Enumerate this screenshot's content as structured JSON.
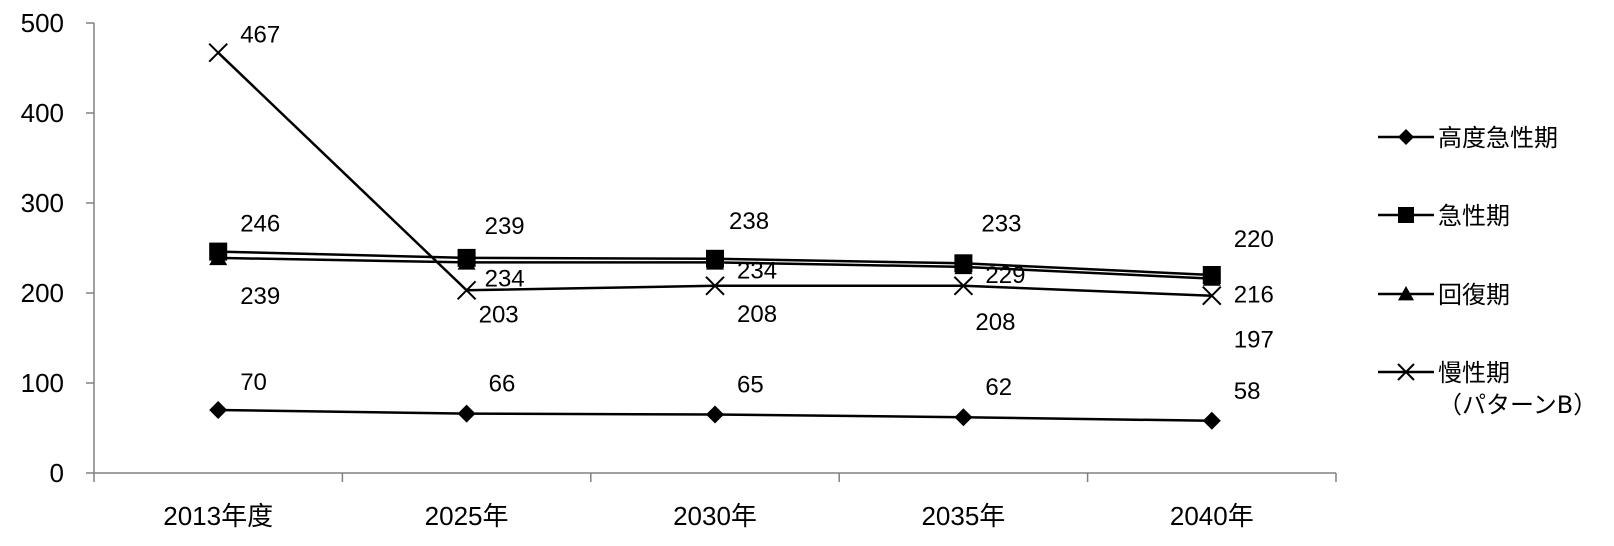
{
  "chart_data": {
    "type": "line",
    "title": "",
    "xlabel": "",
    "ylabel": "",
    "categories": [
      "2013年度",
      "2025年",
      "2030年",
      "2035年",
      "2040年"
    ],
    "ylim": [
      0,
      500
    ],
    "yticks": [
      0,
      100,
      200,
      300,
      400,
      500
    ],
    "grid": false,
    "legend": "right",
    "series": [
      {
        "name": "高度急性期",
        "marker": "diamond",
        "values": [
          70,
          66,
          65,
          62,
          58
        ]
      },
      {
        "name": "急性期",
        "marker": "square",
        "values": [
          246,
          239,
          238,
          233,
          220
        ]
      },
      {
        "name": "回復期",
        "marker": "triangle",
        "values": [
          239,
          234,
          234,
          229,
          216
        ]
      },
      {
        "name": "慢性期\n（パターンB）",
        "marker": "x",
        "values": [
          467,
          203,
          208,
          208,
          197
        ]
      }
    ],
    "line_color": "#000000"
  }
}
